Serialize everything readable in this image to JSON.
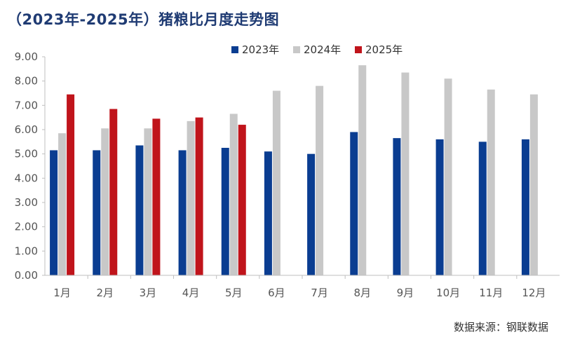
{
  "title": "（2023年-2025年）猪粮比月度走势图",
  "source": "数据来源：钢联数据",
  "chart_data": {
    "type": "bar",
    "categories": [
      "1月",
      "2月",
      "3月",
      "4月",
      "5月",
      "6月",
      "7月",
      "8月",
      "9月",
      "10月",
      "11月",
      "12月"
    ],
    "series": [
      {
        "name": "2023年",
        "color": "#0a3d91",
        "values": [
          5.15,
          5.15,
          5.35,
          5.15,
          5.25,
          5.1,
          5.0,
          5.9,
          5.65,
          5.6,
          5.5,
          5.6
        ]
      },
      {
        "name": "2024年",
        "color": "#c8c8c8",
        "values": [
          5.85,
          6.05,
          6.05,
          6.35,
          6.65,
          7.6,
          7.8,
          8.65,
          8.35,
          8.1,
          7.65,
          7.45
        ]
      },
      {
        "name": "2025年",
        "color": "#c0141b",
        "values": [
          7.45,
          6.85,
          6.45,
          6.5,
          6.2,
          null,
          null,
          null,
          null,
          null,
          null,
          null
        ]
      }
    ],
    "ylim": [
      0,
      9
    ],
    "yticks": [
      "0.00",
      "1.00",
      "2.00",
      "3.00",
      "4.00",
      "5.00",
      "6.00",
      "7.00",
      "8.00",
      "9.00"
    ],
    "legend_position": "top-right",
    "grid": false
  }
}
